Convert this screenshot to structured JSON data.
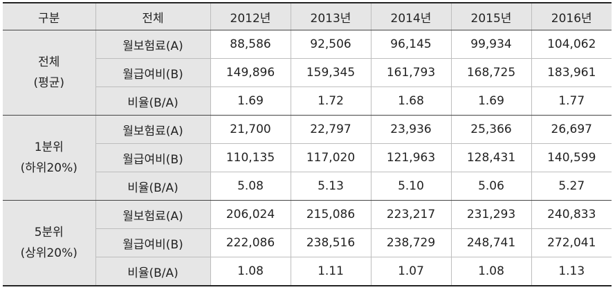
{
  "headers": [
    "구분",
    "전체",
    "2012년",
    "2013년",
    "2014년",
    "2015년",
    "2016년"
  ],
  "groups": [
    {
      "label_line1": "전체",
      "label_line2": "(평균)",
      "rows": [
        {
          "label": "월보험료(A)",
          "values": [
            "88,586",
            "92,506",
            "96,145",
            "99,934",
            "104,062"
          ]
        },
        {
          "label": "월급여비(B)",
          "values": [
            "149,896",
            "159,345",
            "161,793",
            "168,725",
            "183,961"
          ]
        },
        {
          "label": "비율(B/A)",
          "values": [
            "1.69",
            "1.72",
            "1.68",
            "1.69",
            "1.77"
          ]
        }
      ]
    },
    {
      "label_line1": "1분위",
      "label_line2": "(하위20%)",
      "rows": [
        {
          "label": "월보험료(A)",
          "values": [
            "21,700",
            "22,797",
            "23,936",
            "25,366",
            "26,697"
          ]
        },
        {
          "label": "월급여비(B)",
          "values": [
            "110,135",
            "117,020",
            "121,963",
            "128,431",
            "140,599"
          ]
        },
        {
          "label": "비율(B/A)",
          "values": [
            "5.08",
            "5.13",
            "5.10",
            "5.06",
            "5.27"
          ]
        }
      ]
    },
    {
      "label_line1": "5분위",
      "label_line2": "(상위20%)",
      "rows": [
        {
          "label": "월보험료(A)",
          "values": [
            "206,024",
            "215,086",
            "223,217",
            "231,293",
            "240,833"
          ]
        },
        {
          "label": "월급여비(B)",
          "values": [
            "222,086",
            "238,516",
            "238,729",
            "248,741",
            "272,041"
          ]
        },
        {
          "label": "비율(B/A)",
          "values": [
            "1.08",
            "1.11",
            "1.07",
            "1.08",
            "1.13"
          ]
        }
      ]
    }
  ]
}
